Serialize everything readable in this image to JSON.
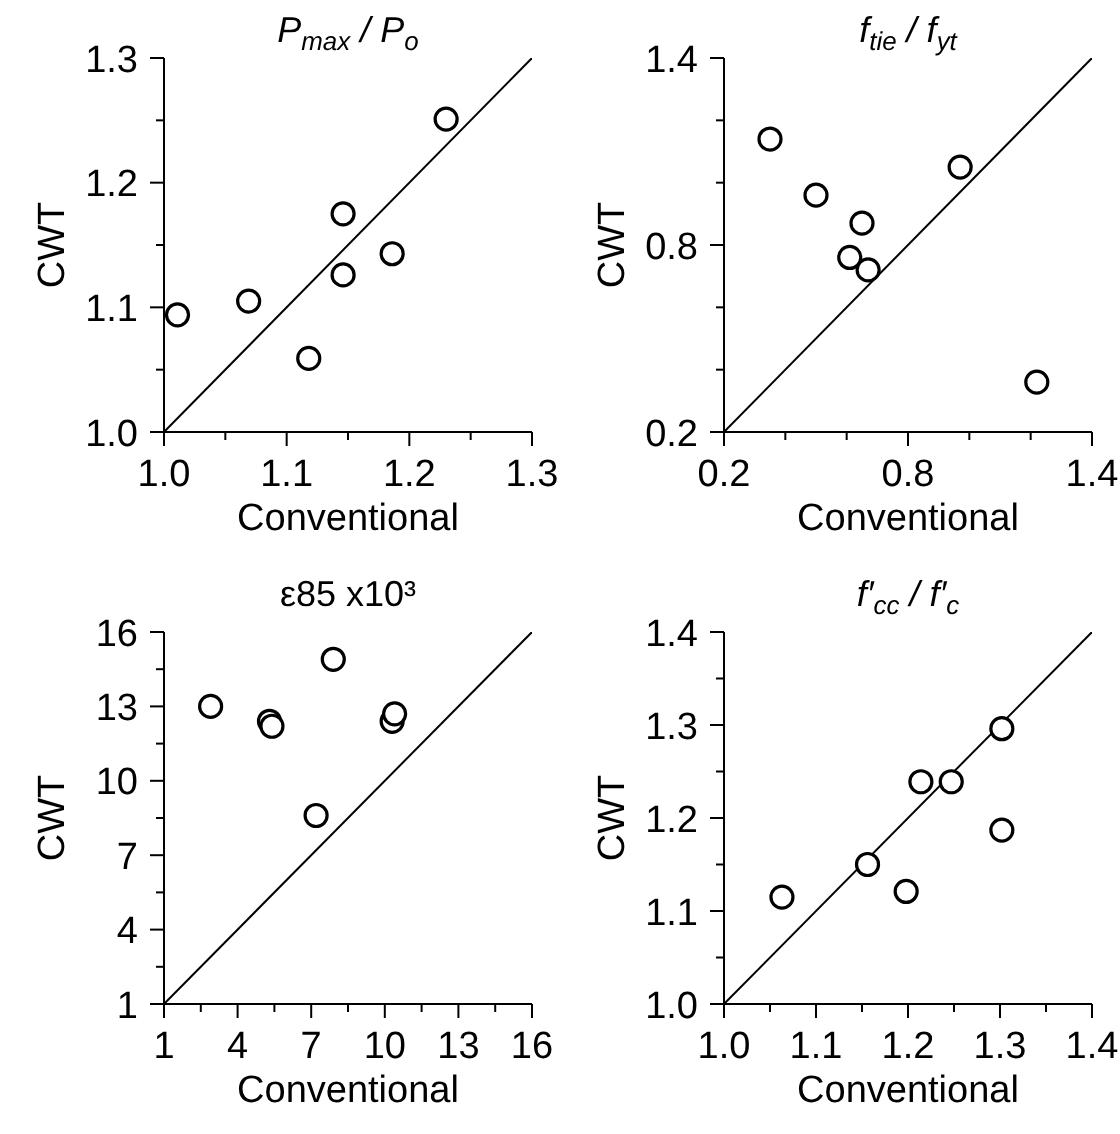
{
  "chart_data": [
    {
      "type": "scatter",
      "title": "P$_{max}$ / P$_{o}$",
      "xlabel": "Conventional",
      "ylabel": "CWT",
      "xlim": [
        1.0,
        1.3
      ],
      "ylim": [
        1.0,
        1.3
      ],
      "xticks": [
        {
          "value": 1.0,
          "label": "1.0"
        },
        {
          "value": 1.05,
          "label": null
        },
        1.1,
        {
          "value": 1.15,
          "label": null
        },
        1.2,
        {
          "value": 1.25,
          "label": null
        },
        1.3
      ],
      "yticks": [
        {
          "value": 1.0,
          "label": "1.0"
        },
        {
          "value": 1.05,
          "label": null
        },
        1.1,
        {
          "value": 1.15,
          "label": null
        },
        1.2,
        {
          "value": 1.25,
          "label": null
        },
        1.3
      ],
      "series": [
        {
          "color": "#000000",
          "marker": "circle",
          "x": [
            1.011,
            1.069,
            1.118,
            1.146,
            1.146,
            1.186,
            1.23
          ],
          "values": [
            1.094,
            1.105,
            1.059,
            1.175,
            1.126,
            1.143,
            1.251
          ]
        },
        {
          "type": "line",
          "color": "#000000",
          "marker": "none",
          "x": [
            1.0,
            1.3
          ],
          "values": [
            1.0,
            1.3
          ]
        }
      ]
    },
    {
      "type": "scatter",
      "title": "f$_{tie}$ / f$_{yt}$",
      "xlabel": "Conventional",
      "ylabel": "CWT",
      "xlim": [
        0.2,
        1.4
      ],
      "ylim": [
        0.2,
        1.4
      ],
      "xticks": [
        0.2,
        {
          "value": 0.4,
          "label": null
        },
        {
          "value": 0.6,
          "label": null
        },
        0.8,
        {
          "value": 1.0,
          "label": null
        },
        {
          "value": 1.2,
          "label": null
        },
        1.4
      ],
      "yticks": [
        0.2,
        {
          "value": 0.4,
          "label": null
        },
        {
          "value": 0.6,
          "label": null
        },
        0.8,
        {
          "value": 1.0,
          "label": null
        },
        {
          "value": 1.2,
          "label": null
        },
        1.4
      ],
      "series": [
        {
          "color": "#000000",
          "marker": "circle",
          "x": [
            0.35,
            0.5,
            0.61,
            0.65,
            0.67,
            0.97,
            1.22
          ],
          "values": [
            1.14,
            0.96,
            0.76,
            0.87,
            0.72,
            1.05,
            0.36
          ]
        },
        {
          "type": "line",
          "color": "#000000",
          "marker": "none",
          "x": [
            0.2,
            1.4
          ],
          "values": [
            0.2,
            1.4
          ]
        }
      ]
    },
    {
      "type": "scatter",
      "title": "ε85 x10³",
      "xlabel": "Conventional",
      "ylabel": "CWT",
      "xlim": [
        1,
        16
      ],
      "ylim": [
        1,
        16
      ],
      "xticks": [
        1,
        {
          "value": 2.5,
          "label": null
        },
        4,
        {
          "value": 5.5,
          "label": null
        },
        7,
        {
          "value": 8.5,
          "label": null
        },
        10,
        {
          "value": 11.5,
          "label": null
        },
        13,
        {
          "value": 14.5,
          "label": null
        },
        16
      ],
      "yticks": [
        1,
        {
          "value": 2.5,
          "label": null
        },
        4,
        {
          "value": 5.5,
          "label": null
        },
        7,
        {
          "value": 8.5,
          "label": null
        },
        10,
        {
          "value": 11.5,
          "label": null
        },
        13,
        {
          "value": 14.5,
          "label": null
        },
        16
      ],
      "series": [
        {
          "color": "#000000",
          "marker": "circle",
          "x": [
            2.9,
            5.3,
            5.4,
            7.9,
            7.2,
            10.3,
            10.4
          ],
          "values": [
            13.0,
            12.4,
            12.2,
            14.9,
            8.6,
            12.4,
            12.7
          ]
        },
        {
          "type": "line",
          "color": "#000000",
          "marker": "none",
          "x": [
            1,
            16
          ],
          "values": [
            1,
            16
          ]
        }
      ]
    },
    {
      "type": "scatter",
      "title": "f′$_{cc}$ / f′$_{c}$",
      "xlabel": "Conventional",
      "ylabel": "CWT",
      "xlim": [
        1.0,
        1.4
      ],
      "ylim": [
        1.0,
        1.4
      ],
      "xticks": [
        {
          "value": 1.0,
          "label": "1.0"
        },
        {
          "value": 1.05,
          "label": null
        },
        1.1,
        {
          "value": 1.15,
          "label": null
        },
        1.2,
        {
          "value": 1.25,
          "label": null
        },
        1.3,
        {
          "value": 1.35,
          "label": null
        },
        1.4
      ],
      "yticks": [
        {
          "value": 1.0,
          "label": "1.0"
        },
        {
          "value": 1.05,
          "label": null
        },
        1.1,
        {
          "value": 1.15,
          "label": null
        },
        1.2,
        {
          "value": 1.25,
          "label": null
        },
        1.3,
        {
          "value": 1.35,
          "label": null
        },
        1.4
      ],
      "series": [
        {
          "color": "#000000",
          "marker": "circle",
          "x": [
            1.063,
            1.156,
            1.198,
            1.214,
            1.247,
            1.302,
            1.302
          ],
          "values": [
            1.115,
            1.15,
            1.121,
            1.239,
            1.239,
            1.296,
            1.187
          ]
        },
        {
          "type": "line",
          "color": "#000000",
          "marker": "none",
          "x": [
            1.0,
            1.4
          ],
          "values": [
            1.0,
            1.4
          ]
        }
      ]
    }
  ]
}
